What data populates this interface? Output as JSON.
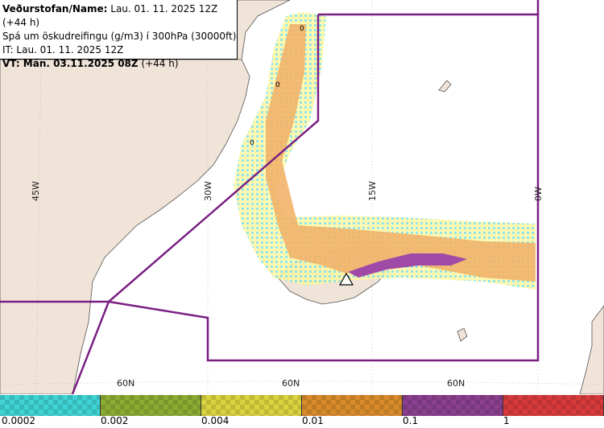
{
  "header": {
    "line1_label": "Veðurstofan/Name:",
    "line1_value": "Lau. 01. 11. 2025 12Z (+44 h)",
    "line2": "Spá um öskudreifingu (g/m3) í 300hPa (30000ft)",
    "line3": "IT: Lau. 01. 11. 2025 12Z",
    "line4_label": "VT: Mán. 03.11.2025 08Z",
    "line4_value": "(+44 h)"
  },
  "map": {
    "longitude_labels": [
      "45W",
      "30W",
      "15W",
      "0W"
    ],
    "latitude_labels": [
      "60N",
      "60N",
      "60N"
    ],
    "contour_labels": [
      "0",
      "0",
      "0"
    ]
  },
  "legend": {
    "ticks": [
      "0.0002",
      "0.002",
      "0.004",
      "0.01",
      "0.1",
      "1"
    ],
    "colors": [
      "#3fd3d3",
      "#8cab32",
      "#d9d33f",
      "#d98b2b",
      "#8a3f8f",
      "#d83a3a"
    ]
  },
  "colors": {
    "land": "#f0e3d8",
    "sea": "#ffffff",
    "fir_boundary": "#7a1f82",
    "volcano": "#ffffff"
  }
}
